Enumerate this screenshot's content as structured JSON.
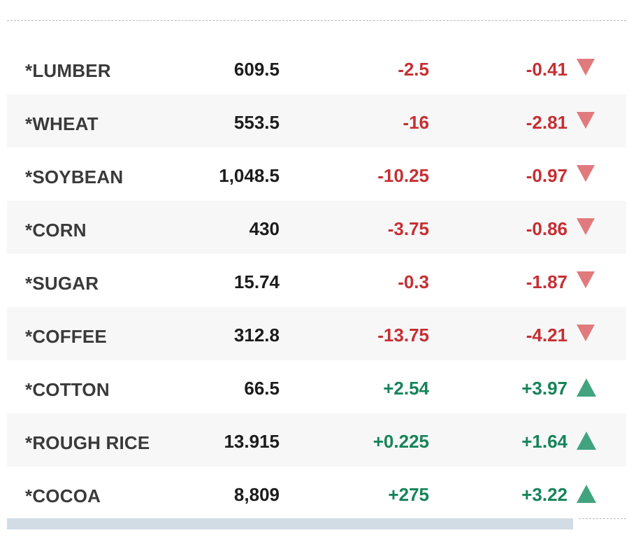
{
  "colors": {
    "negative_text": "#c62f33",
    "positive_text": "#168459",
    "down_arrow": "#e07a7d",
    "up_arrow": "#41a47e"
  },
  "rows": [
    {
      "name": "*LUMBER",
      "last": "609.5",
      "change": "-2.5",
      "pct": "-0.41",
      "direction": "down"
    },
    {
      "name": "*WHEAT",
      "last": "553.5",
      "change": "-16",
      "pct": "-2.81",
      "direction": "down"
    },
    {
      "name": "*SOYBEAN",
      "last": "1,048.5",
      "change": "-10.25",
      "pct": "-0.97",
      "direction": "down"
    },
    {
      "name": "*CORN",
      "last": "430",
      "change": "-3.75",
      "pct": "-0.86",
      "direction": "down"
    },
    {
      "name": "*SUGAR",
      "last": "15.74",
      "change": "-0.3",
      "pct": "-1.87",
      "direction": "down"
    },
    {
      "name": "*COFFEE",
      "last": "312.8",
      "change": "-13.75",
      "pct": "-4.21",
      "direction": "down"
    },
    {
      "name": "*COTTON",
      "last": "66.5",
      "change": "+2.54",
      "pct": "+3.97",
      "direction": "up"
    },
    {
      "name": "*ROUGH RICE",
      "last": "13.915",
      "change": "+0.225",
      "pct": "+1.64",
      "direction": "up"
    },
    {
      "name": "*COCOA",
      "last": "8,809",
      "change": "+275",
      "pct": "+3.22",
      "direction": "up"
    }
  ]
}
